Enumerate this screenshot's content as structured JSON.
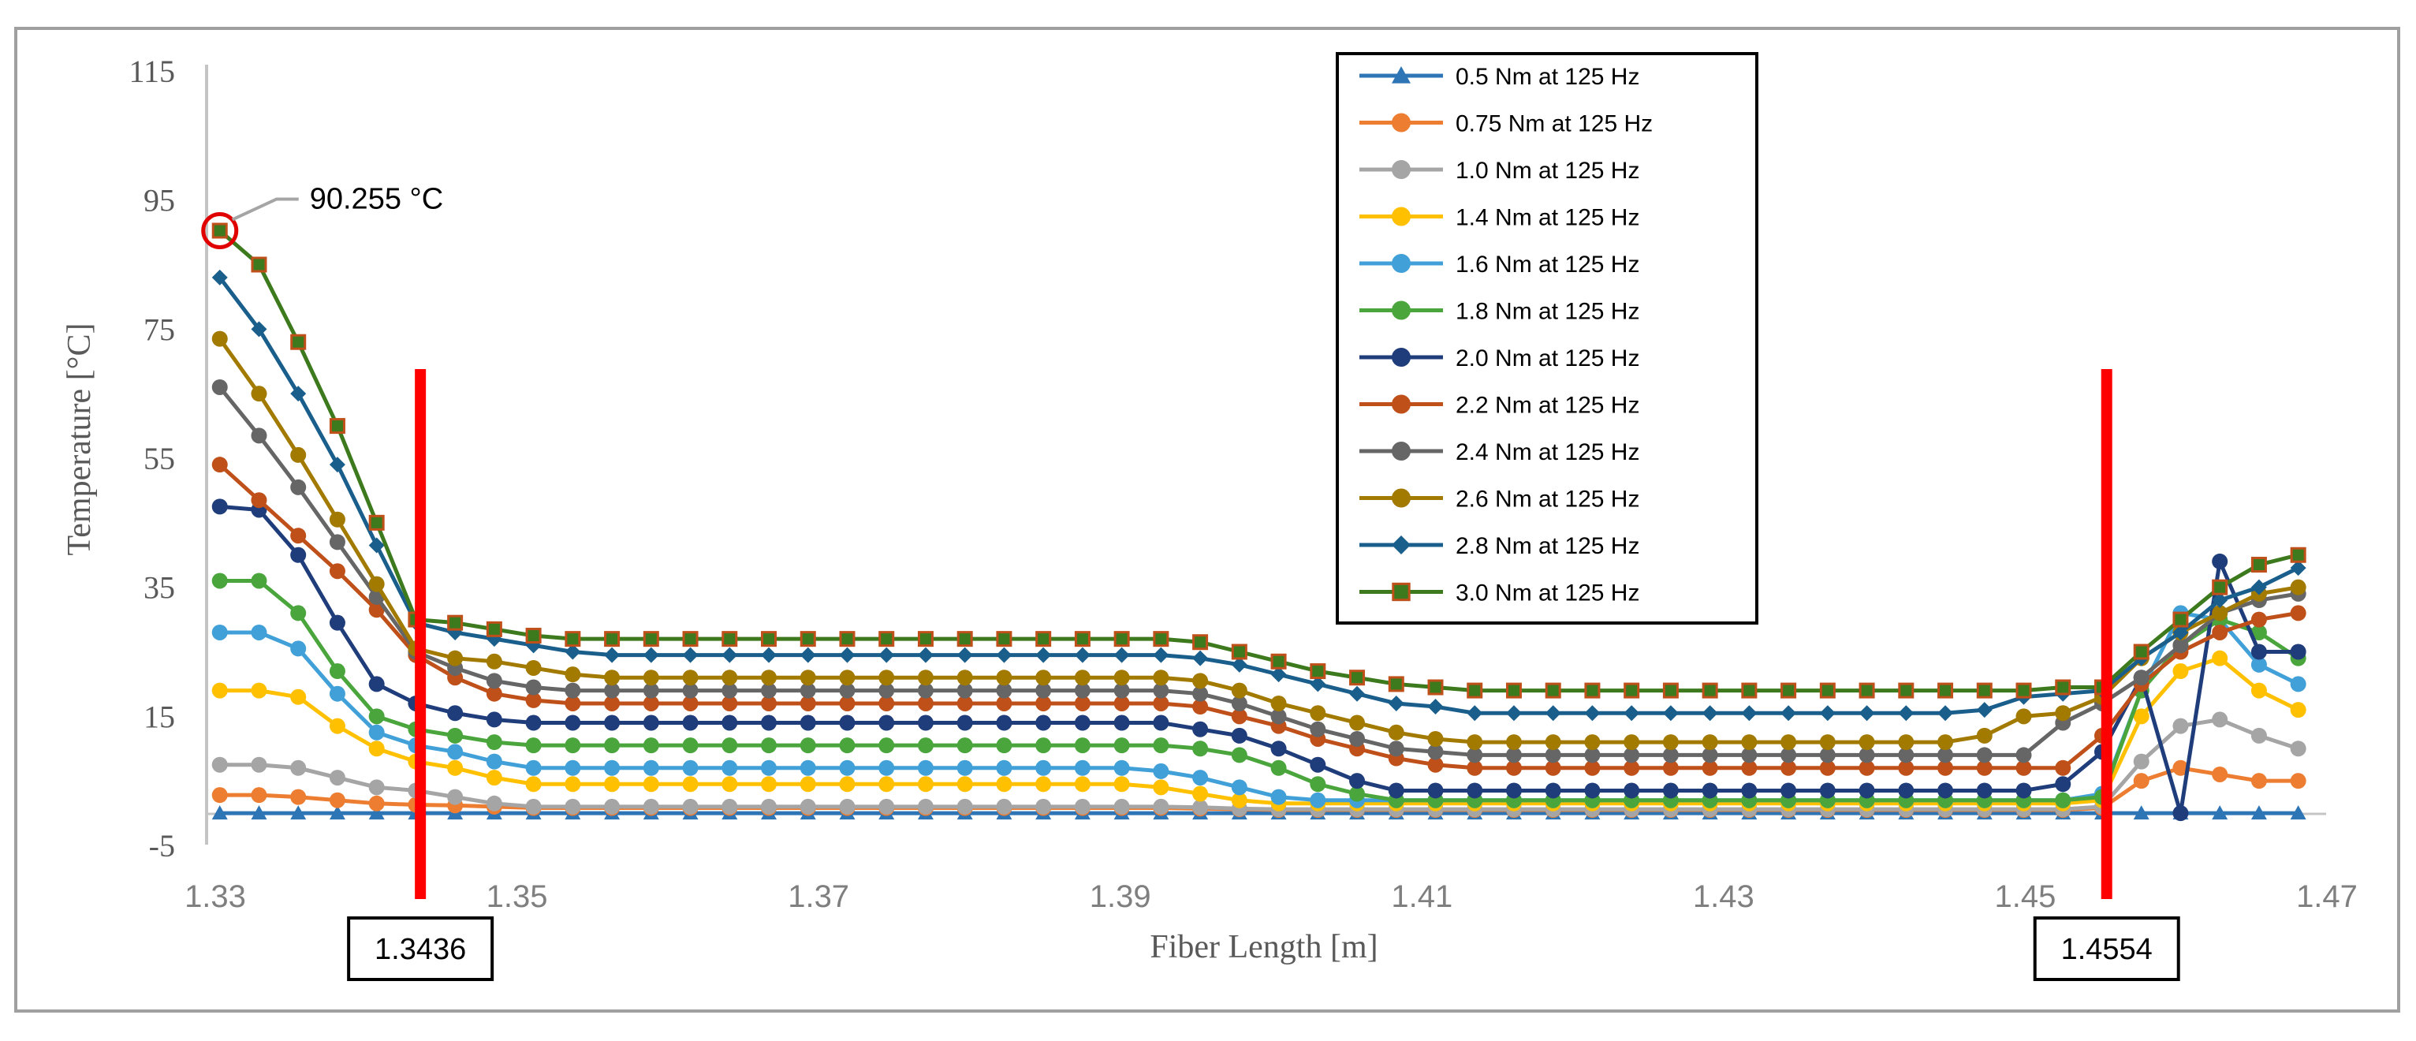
{
  "chart_data": {
    "type": "line",
    "title": "",
    "xlabel": "Fiber Length [m]",
    "ylabel": "Temperature [°C]",
    "xlim": [
      1.33,
      1.47
    ],
    "ylim": [
      -5,
      115
    ],
    "x_ticks": [
      "1.33",
      "1.35",
      "1.37",
      "1.39",
      "1.41",
      "1.43",
      "1.45",
      "1.47"
    ],
    "y_ticks": [
      "-5",
      "15",
      "35",
      "55",
      "75",
      "95",
      "115"
    ],
    "x": [
      1.3303,
      1.3329,
      1.3355,
      1.3381,
      1.3407,
      1.3433,
      1.3459,
      1.3485,
      1.3511,
      1.3537,
      1.3563,
      1.3589,
      1.3615,
      1.3641,
      1.3667,
      1.3693,
      1.3719,
      1.3745,
      1.3771,
      1.3797,
      1.3823,
      1.3849,
      1.3875,
      1.3901,
      1.3927,
      1.3953,
      1.3979,
      1.4005,
      1.4031,
      1.4057,
      1.4083,
      1.4109,
      1.4135,
      1.4161,
      1.4187,
      1.4213,
      1.4239,
      1.4265,
      1.4291,
      1.4317,
      1.4343,
      1.4369,
      1.4395,
      1.4421,
      1.4447,
      1.4473,
      1.4499,
      1.4525,
      1.4551,
      1.4577,
      1.4603,
      1.4629,
      1.4655,
      1.4681
    ],
    "series": [
      {
        "name": "0.5 Nm at 125 Hz",
        "color": "#2e75b6",
        "marker": "triangle",
        "values": [
          0,
          0,
          0,
          0,
          0,
          0,
          0,
          0,
          0,
          0,
          0,
          0,
          0,
          0,
          0,
          0,
          0,
          0,
          0,
          0,
          0,
          0,
          0,
          0,
          0,
          0,
          0,
          0,
          0,
          0,
          0,
          0,
          0,
          0,
          0,
          0,
          0,
          0,
          0,
          0,
          0,
          0,
          0,
          0,
          0,
          0,
          0,
          0,
          0,
          0,
          0,
          0,
          0,
          0
        ]
      },
      {
        "name": "0.75 Nm at 125 Hz",
        "color": "#ed7d31",
        "marker": "circle",
        "values": [
          2.8,
          2.8,
          2.5,
          2,
          1.5,
          1.3,
          1.2,
          1,
          0.8,
          0.8,
          0.8,
          0.8,
          0.8,
          0.8,
          0.8,
          0.8,
          0.8,
          0.8,
          0.8,
          0.8,
          0.8,
          0.8,
          0.8,
          0.8,
          0.8,
          0.7,
          0.6,
          0.5,
          0.5,
          0.5,
          0.5,
          0.5,
          0.5,
          0.5,
          0.5,
          0.5,
          0.5,
          0.5,
          0.5,
          0.5,
          0.5,
          0.5,
          0.5,
          0.5,
          0.5,
          0.5,
          0.5,
          0.5,
          0.8,
          5,
          7,
          6,
          5,
          5
        ]
      },
      {
        "name": "1.0 Nm at 125 Hz",
        "color": "#a5a5a5",
        "marker": "circle",
        "values": [
          7.5,
          7.5,
          7,
          5.5,
          4,
          3.5,
          2.5,
          1.5,
          1,
          1,
          1,
          1,
          1,
          1,
          1,
          1,
          1,
          1,
          1,
          1,
          1,
          1,
          1,
          1,
          1,
          0.9,
          0.7,
          0.6,
          0.6,
          0.6,
          0.6,
          0.6,
          0.6,
          0.6,
          0.6,
          0.6,
          0.6,
          0.6,
          0.6,
          0.6,
          0.6,
          0.6,
          0.6,
          0.6,
          0.6,
          0.6,
          0.6,
          0.6,
          1,
          8,
          13.5,
          14.5,
          12,
          10
        ]
      },
      {
        "name": "1.4 Nm at 125 Hz",
        "color": "#ffc000",
        "marker": "circle",
        "values": [
          19,
          19,
          18,
          13.5,
          10,
          8,
          7,
          5.5,
          4.5,
          4.5,
          4.5,
          4.5,
          4.5,
          4.5,
          4.5,
          4.5,
          4.5,
          4.5,
          4.5,
          4.5,
          4.5,
          4.5,
          4.5,
          4.5,
          4,
          3,
          2,
          1.5,
          1.5,
          1.5,
          1.5,
          1.5,
          1.5,
          1.5,
          1.5,
          1.5,
          1.5,
          1.5,
          1.5,
          1.5,
          1.5,
          1.5,
          1.5,
          1.5,
          1.5,
          1.5,
          1.5,
          1.5,
          2,
          15,
          22,
          24,
          19,
          16
        ]
      },
      {
        "name": "1.6 Nm at 125 Hz",
        "color": "#41a0d8",
        "marker": "circle",
        "values": [
          28,
          28,
          25.5,
          18.5,
          12.5,
          10.5,
          9.5,
          8,
          7,
          7,
          7,
          7,
          7,
          7,
          7,
          7,
          7,
          7,
          7,
          7,
          7,
          7,
          7,
          7,
          6.5,
          5.5,
          4,
          2.5,
          2,
          2,
          2,
          2,
          2,
          2,
          2,
          2,
          2,
          2,
          2,
          2,
          2,
          2,
          2,
          2,
          2,
          2,
          2,
          2,
          3,
          19,
          31,
          30,
          23,
          20
        ]
      },
      {
        "name": "1.8 Nm at 125 Hz",
        "color": "#4aa63c",
        "marker": "circle",
        "values": [
          36,
          36,
          31,
          22,
          15,
          13,
          12,
          11,
          10.5,
          10.5,
          10.5,
          10.5,
          10.5,
          10.5,
          10.5,
          10.5,
          10.5,
          10.5,
          10.5,
          10.5,
          10.5,
          10.5,
          10.5,
          10.5,
          10.5,
          10,
          9,
          7,
          4.5,
          3,
          2,
          2,
          2,
          2,
          2,
          2,
          2,
          2,
          2,
          2,
          2,
          2,
          2,
          2,
          2,
          2,
          2,
          2,
          2.5,
          19,
          26,
          30,
          28,
          24
        ]
      },
      {
        "name": "2.0 Nm at 125 Hz",
        "color": "#1f3d7a",
        "marker": "circle",
        "values": [
          47.5,
          47,
          40,
          29.5,
          20,
          17,
          15.5,
          14.5,
          14,
          14,
          14,
          14,
          14,
          14,
          14,
          14,
          14,
          14,
          14,
          14,
          14,
          14,
          14,
          14,
          14,
          13,
          12,
          10,
          7.5,
          5,
          3.5,
          3.5,
          3.5,
          3.5,
          3.5,
          3.5,
          3.5,
          3.5,
          3.5,
          3.5,
          3.5,
          3.5,
          3.5,
          3.5,
          3.5,
          3.5,
          3.5,
          4.5,
          9.5,
          21,
          0,
          39,
          25,
          25
        ]
      },
      {
        "name": "2.2 Nm at 125 Hz",
        "color": "#c0501a",
        "marker": "circle",
        "values": [
          54,
          48.5,
          43,
          37.5,
          31.5,
          24.5,
          21,
          18.5,
          17.5,
          17,
          17,
          17,
          17,
          17,
          17,
          17,
          17,
          17,
          17,
          17,
          17,
          17,
          17,
          17,
          17,
          16.5,
          15,
          13.5,
          11.5,
          10,
          8.5,
          7.5,
          7,
          7,
          7,
          7,
          7,
          7,
          7,
          7,
          7,
          7,
          7,
          7,
          7,
          7,
          7,
          7,
          12,
          20,
          25,
          28,
          30,
          31
        ]
      },
      {
        "name": "2.4 Nm at 125 Hz",
        "color": "#666666",
        "marker": "circle",
        "values": [
          66,
          58.5,
          50.5,
          42,
          33.5,
          25,
          22.5,
          20.5,
          19.5,
          19,
          19,
          19,
          19,
          19,
          19,
          19,
          19,
          19,
          19,
          19,
          19,
          19,
          19,
          19,
          19,
          18.5,
          17,
          15,
          13,
          11.5,
          10,
          9.5,
          9,
          9,
          9,
          9,
          9,
          9,
          9,
          9,
          9,
          9,
          9,
          9,
          9,
          9,
          9,
          14,
          17,
          21,
          26,
          31,
          33,
          34
        ]
      },
      {
        "name": "2.6 Nm at 125 Hz",
        "color": "#a37a00",
        "marker": "circle",
        "values": [
          73.5,
          65,
          55.5,
          45.5,
          35.5,
          25.5,
          24,
          23.5,
          22.5,
          21.5,
          21,
          21,
          21,
          21,
          21,
          21,
          21,
          21,
          21,
          21,
          21,
          21,
          21,
          21,
          21,
          20.5,
          19,
          17,
          15.5,
          14,
          12.5,
          11.5,
          11,
          11,
          11,
          11,
          11,
          11,
          11,
          11,
          11,
          11,
          11,
          11,
          11,
          12,
          15,
          15.5,
          18,
          24,
          28,
          31,
          34,
          35
        ]
      },
      {
        "name": "2.8 Nm at 125 Hz",
        "color": "#1a5e8c",
        "marker": "diamond",
        "values": [
          83,
          75,
          65,
          54,
          41.5,
          29.5,
          28,
          27,
          26,
          25,
          24.5,
          24.5,
          24.5,
          24.5,
          24.5,
          24.5,
          24.5,
          24.5,
          24.5,
          24.5,
          24.5,
          24.5,
          24.5,
          24.5,
          24.5,
          24,
          23,
          21.5,
          20,
          18.5,
          17,
          16.5,
          15.5,
          15.5,
          15.5,
          15.5,
          15.5,
          15.5,
          15.5,
          15.5,
          15.5,
          15.5,
          15.5,
          15.5,
          15.5,
          16,
          18,
          18.5,
          19,
          24,
          28,
          33,
          35,
          38
        ]
      },
      {
        "name": "3.0 Nm at 125 Hz",
        "color": "#3d7a1e",
        "marker": "square",
        "marker_edge": "#c0501a",
        "values": [
          90.255,
          85,
          73,
          60,
          45,
          30,
          29.5,
          28.5,
          27.5,
          27,
          27,
          27,
          27,
          27,
          27,
          27,
          27,
          27,
          27,
          27,
          27,
          27,
          27,
          27,
          27,
          26.5,
          25,
          23.5,
          22,
          21,
          20,
          19.5,
          19,
          19,
          19,
          19,
          19,
          19,
          19,
          19,
          19,
          19,
          19,
          19,
          19,
          19,
          19,
          19.5,
          19.5,
          25,
          30,
          35,
          38.5,
          40
        ]
      }
    ],
    "annotations": {
      "peak_label": "90.255 °C",
      "peak_point": {
        "x": 1.3303,
        "y": 90.255
      },
      "markers": [
        {
          "x": 1.3436,
          "label": "1.3436"
        },
        {
          "x": 1.4554,
          "label": "1.4554"
        }
      ]
    },
    "legend_position": "top-center",
    "grid": false
  }
}
